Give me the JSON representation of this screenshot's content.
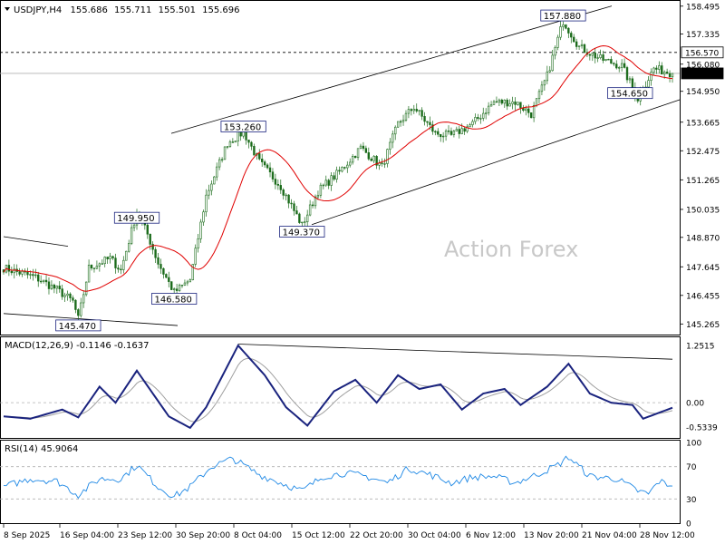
{
  "chart_data": [
    {
      "type": "candlestick",
      "title": "USDJPY,H4",
      "ohlc_readout": [
        "155.686",
        "155.711",
        "155.501",
        "155.696"
      ],
      "current_price": "155.696",
      "reference_level": "156.570",
      "y_ticks": [
        "158.495",
        "157.335",
        "156.080",
        "154.950",
        "153.665",
        "152.475",
        "151.265",
        "150.035",
        "148.870",
        "147.645",
        "146.455",
        "145.265"
      ],
      "ylim": [
        144.9,
        158.6
      ],
      "x_ticks": [
        "8 Sep 2025",
        "16 Sep 04:00",
        "23 Sep 12:00",
        "30 Sep 20:00",
        "8 Oct 04:00",
        "15 Oct 12:00",
        "22 Oct 20:00",
        "30 Oct 04:00",
        "6 Nov 12:00",
        "13 Nov 20:00",
        "21 Nov 04:00",
        "28 Nov 12:00"
      ],
      "bars": 252,
      "anchors": [
        [
          0,
          147.6
        ],
        [
          12,
          147.2
        ],
        [
          20,
          146.7
        ],
        [
          26,
          146.2
        ],
        [
          28,
          145.47
        ],
        [
          32,
          147.6
        ],
        [
          40,
          148.0
        ],
        [
          44,
          147.5
        ],
        [
          50,
          149.95
        ],
        [
          54,
          149.0
        ],
        [
          58,
          147.8
        ],
        [
          64,
          146.58
        ],
        [
          70,
          147.1
        ],
        [
          76,
          150.6
        ],
        [
          84,
          152.8
        ],
        [
          90,
          153.26
        ],
        [
          96,
          152.0
        ],
        [
          104,
          151.0
        ],
        [
          112,
          149.37
        ],
        [
          118,
          150.8
        ],
        [
          126,
          151.6
        ],
        [
          134,
          152.6
        ],
        [
          142,
          151.8
        ],
        [
          148,
          153.6
        ],
        [
          154,
          154.3
        ],
        [
          162,
          153.2
        ],
        [
          168,
          153.1
        ],
        [
          176,
          153.6
        ],
        [
          184,
          154.5
        ],
        [
          192,
          154.5
        ],
        [
          198,
          154.0
        ],
        [
          204,
          155.6
        ],
        [
          210,
          157.88
        ],
        [
          216,
          156.8
        ],
        [
          224,
          156.3
        ],
        [
          232,
          156.0
        ],
        [
          238,
          154.65
        ],
        [
          244,
          155.9
        ],
        [
          251,
          155.696
        ]
      ],
      "annotations": [
        {
          "text": "157.880",
          "bar": 210,
          "value": 157.88
        },
        {
          "text": "153.260",
          "bar": 90,
          "value": 153.26
        },
        {
          "text": "149.950",
          "bar": 50,
          "value": 149.95
        },
        {
          "text": "149.370",
          "bar": 112,
          "value": 149.37
        },
        {
          "text": "146.580",
          "bar": 64,
          "value": 146.58
        },
        {
          "text": "145.470",
          "bar": 28,
          "value": 145.47
        },
        {
          "text": "154.650",
          "bar": 238,
          "value": 154.65
        }
      ],
      "moving_average_color": "#e00000",
      "candle_color": "#1a6b1a",
      "watermark": "Action Forex"
    },
    {
      "type": "line",
      "title": "MACD(12,26,9) -0.1146 -0.1637",
      "y_ticks": [
        "1.2515",
        "0.00",
        "-0.5339"
      ],
      "ylim": [
        -0.75,
        1.35
      ],
      "anchors": [
        [
          0,
          -0.3
        ],
        [
          10,
          -0.35
        ],
        [
          22,
          -0.15
        ],
        [
          28,
          -0.32
        ],
        [
          36,
          0.35
        ],
        [
          42,
          0.0
        ],
        [
          50,
          0.7
        ],
        [
          56,
          0.2
        ],
        [
          62,
          -0.3
        ],
        [
          70,
          -0.55
        ],
        [
          76,
          -0.1
        ],
        [
          88,
          1.25
        ],
        [
          98,
          0.6
        ],
        [
          106,
          -0.1
        ],
        [
          114,
          -0.5
        ],
        [
          124,
          0.25
        ],
        [
          132,
          0.5
        ],
        [
          140,
          0.0
        ],
        [
          148,
          0.6
        ],
        [
          156,
          0.3
        ],
        [
          164,
          0.4
        ],
        [
          172,
          -0.15
        ],
        [
          180,
          0.2
        ],
        [
          188,
          0.3
        ],
        [
          194,
          -0.05
        ],
        [
          204,
          0.35
        ],
        [
          212,
          0.85
        ],
        [
          220,
          0.2
        ],
        [
          228,
          0.0
        ],
        [
          236,
          -0.05
        ],
        [
          240,
          -0.35
        ],
        [
          251,
          -0.11
        ]
      ],
      "line_color": "#1a237e",
      "signal_color": "#a0a0a0"
    },
    {
      "type": "line",
      "title": "RSI(14) 45.9064",
      "y_ticks": [
        "100",
        "70",
        "30",
        "0"
      ],
      "ylim": [
        0,
        100
      ],
      "anchors": [
        [
          0,
          45
        ],
        [
          10,
          55
        ],
        [
          20,
          52
        ],
        [
          28,
          35
        ],
        [
          36,
          55
        ],
        [
          44,
          55
        ],
        [
          50,
          72
        ],
        [
          58,
          45
        ],
        [
          64,
          33
        ],
        [
          70,
          45
        ],
        [
          78,
          70
        ],
        [
          86,
          80
        ],
        [
          96,
          60
        ],
        [
          104,
          50
        ],
        [
          112,
          40
        ],
        [
          120,
          58
        ],
        [
          128,
          62
        ],
        [
          136,
          58
        ],
        [
          144,
          50
        ],
        [
          152,
          68
        ],
        [
          160,
          60
        ],
        [
          168,
          50
        ],
        [
          176,
          57
        ],
        [
          184,
          58
        ],
        [
          192,
          50
        ],
        [
          200,
          60
        ],
        [
          208,
          72
        ],
        [
          212,
          82
        ],
        [
          220,
          58
        ],
        [
          230,
          55
        ],
        [
          238,
          40
        ],
        [
          242,
          36
        ],
        [
          246,
          52
        ],
        [
          251,
          46
        ]
      ],
      "line_color": "#1e88e5"
    }
  ]
}
